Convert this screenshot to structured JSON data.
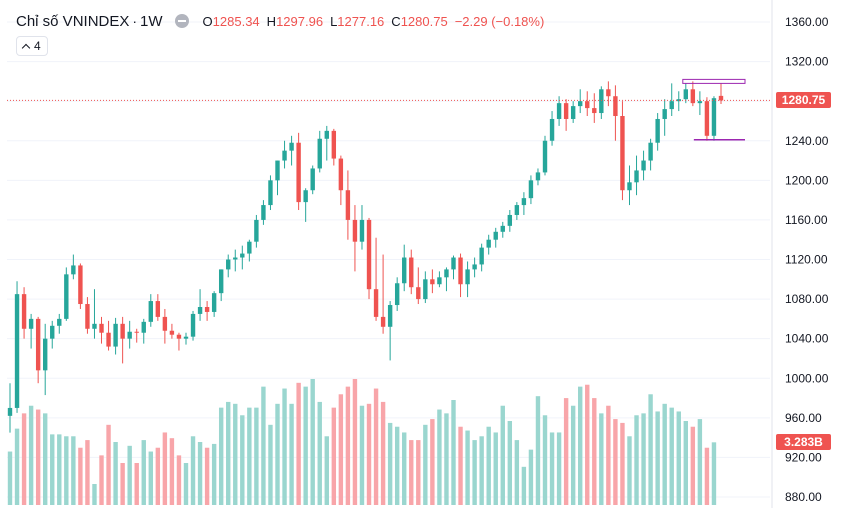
{
  "header": {
    "symbol": "Chỉ số VNINDEX",
    "separator": "·",
    "interval": "1W",
    "open_key": "O",
    "open": "1285.34",
    "high_key": "H",
    "high": "1297.96",
    "low_key": "L",
    "low": "1277.16",
    "close_key": "C",
    "close": "1280.75",
    "change": "−2.29 (−0.18%)",
    "indicators_count": "4"
  },
  "colors": {
    "up": "#26a69a",
    "down": "#ef5350",
    "vol_up": "#9ad6cf",
    "vol_down": "#f8a5a9",
    "price_line": "#ef5350",
    "drawing": "#9c27b0"
  },
  "last_price_label": "1280.75",
  "volume_label": "3.283B",
  "chart_data": {
    "type": "candlestick",
    "interval": "1W",
    "y_axis": {
      "ticks": [
        "1360.00",
        "1320.00",
        "1280.00",
        "1240.00",
        "1200.00",
        "1160.00",
        "1120.00",
        "1080.00",
        "1040.00",
        "1000.00",
        "960.00",
        "920.00",
        "880.00"
      ],
      "range": [
        875,
        1368
      ]
    },
    "last_price": 1280.75,
    "candles": [
      [
        962,
        995,
        945,
        970
      ],
      [
        970,
        1098,
        965,
        1085
      ],
      [
        1085,
        1092,
        1040,
        1050
      ],
      [
        1050,
        1065,
        1030,
        1060
      ],
      [
        1060,
        1062,
        995,
        1008
      ],
      [
        1008,
        1055,
        983,
        1040
      ],
      [
        1040,
        1058,
        1030,
        1053
      ],
      [
        1053,
        1065,
        1045,
        1060
      ],
      [
        1060,
        1112,
        1058,
        1105
      ],
      [
        1105,
        1125,
        1100,
        1114
      ],
      [
        1114,
        1116,
        1070,
        1075
      ],
      [
        1075,
        1082,
        1045,
        1050
      ],
      [
        1050,
        1090,
        1040,
        1055
      ],
      [
        1055,
        1062,
        1035,
        1046
      ],
      [
        1046,
        1058,
        1028,
        1032
      ],
      [
        1032,
        1061,
        1024,
        1055
      ],
      [
        1055,
        1062,
        1015,
        1040
      ],
      [
        1040,
        1058,
        1030,
        1047
      ],
      [
        1047,
        1050,
        1036,
        1046
      ],
      [
        1046,
        1060,
        1035,
        1057
      ],
      [
        1057,
        1085,
        1052,
        1078
      ],
      [
        1078,
        1085,
        1058,
        1062
      ],
      [
        1062,
        1070,
        1035,
        1048
      ],
      [
        1048,
        1055,
        1040,
        1044
      ],
      [
        1044,
        1046,
        1028,
        1040
      ],
      [
        1040,
        1046,
        1034,
        1042
      ],
      [
        1042,
        1068,
        1038,
        1065
      ],
      [
        1065,
        1090,
        1058,
        1072
      ],
      [
        1072,
        1078,
        1058,
        1067
      ],
      [
        1067,
        1088,
        1062,
        1086
      ],
      [
        1086,
        1110,
        1078,
        1110
      ],
      [
        1110,
        1125,
        1102,
        1120
      ],
      [
        1120,
        1130,
        1108,
        1122
      ],
      [
        1122,
        1134,
        1110,
        1126
      ],
      [
        1126,
        1140,
        1118,
        1138
      ],
      [
        1138,
        1165,
        1132,
        1160
      ],
      [
        1160,
        1180,
        1155,
        1175
      ],
      [
        1175,
        1205,
        1170,
        1200
      ],
      [
        1200,
        1220,
        1185,
        1220
      ],
      [
        1220,
        1240,
        1212,
        1230
      ],
      [
        1230,
        1245,
        1215,
        1238
      ],
      [
        1238,
        1248,
        1170,
        1178
      ],
      [
        1178,
        1192,
        1158,
        1190
      ],
      [
        1190,
        1215,
        1186,
        1212
      ],
      [
        1212,
        1250,
        1208,
        1242
      ],
      [
        1242,
        1255,
        1220,
        1250
      ],
      [
        1250,
        1252,
        1215,
        1222
      ],
      [
        1222,
        1225,
        1175,
        1190
      ],
      [
        1190,
        1210,
        1140,
        1160
      ],
      [
        1160,
        1175,
        1108,
        1138
      ],
      [
        1138,
        1175,
        1130,
        1160
      ],
      [
        1160,
        1162,
        1080,
        1090
      ],
      [
        1090,
        1142,
        1058,
        1062
      ],
      [
        1062,
        1125,
        1045,
        1052
      ],
      [
        1052,
        1078,
        1018,
        1074
      ],
      [
        1074,
        1102,
        1068,
        1096
      ],
      [
        1096,
        1135,
        1088,
        1122
      ],
      [
        1122,
        1130,
        1085,
        1092
      ],
      [
        1092,
        1112,
        1075,
        1080
      ],
      [
        1080,
        1108,
        1076,
        1100
      ],
      [
        1100,
        1110,
        1086,
        1095
      ],
      [
        1095,
        1108,
        1092,
        1102
      ],
      [
        1102,
        1112,
        1088,
        1110
      ],
      [
        1110,
        1124,
        1100,
        1122
      ],
      [
        1122,
        1126,
        1082,
        1095
      ],
      [
        1095,
        1118,
        1082,
        1110
      ],
      [
        1110,
        1122,
        1102,
        1115
      ],
      [
        1115,
        1136,
        1108,
        1132
      ],
      [
        1132,
        1145,
        1125,
        1140
      ],
      [
        1140,
        1152,
        1132,
        1148
      ],
      [
        1148,
        1158,
        1142,
        1154
      ],
      [
        1154,
        1170,
        1148,
        1165
      ],
      [
        1165,
        1178,
        1160,
        1175
      ],
      [
        1175,
        1188,
        1165,
        1182
      ],
      [
        1182,
        1205,
        1176,
        1200
      ],
      [
        1200,
        1212,
        1195,
        1208
      ],
      [
        1208,
        1245,
        1205,
        1240
      ],
      [
        1240,
        1270,
        1235,
        1262
      ],
      [
        1262,
        1285,
        1255,
        1278
      ],
      [
        1278,
        1282,
        1250,
        1262
      ],
      [
        1262,
        1280,
        1258,
        1275
      ],
      [
        1275,
        1292,
        1268,
        1280
      ],
      [
        1280,
        1290,
        1265,
        1273
      ],
      [
        1273,
        1288,
        1258,
        1268
      ],
      [
        1268,
        1295,
        1262,
        1292
      ],
      [
        1292,
        1300,
        1275,
        1285
      ],
      [
        1285,
        1296,
        1240,
        1265
      ],
      [
        1265,
        1280,
        1180,
        1190
      ],
      [
        1190,
        1215,
        1175,
        1198
      ],
      [
        1198,
        1225,
        1185,
        1210
      ],
      [
        1210,
        1230,
        1200,
        1220
      ],
      [
        1220,
        1242,
        1210,
        1238
      ],
      [
        1238,
        1268,
        1230,
        1262
      ],
      [
        1262,
        1282,
        1245,
        1272
      ],
      [
        1272,
        1298,
        1265,
        1280
      ],
      [
        1280,
        1290,
        1270,
        1282
      ],
      [
        1282,
        1298,
        1278,
        1292
      ],
      [
        1292,
        1300,
        1275,
        1278
      ],
      [
        1278,
        1290,
        1266,
        1280
      ],
      [
        1280,
        1284,
        1240,
        1245
      ],
      [
        1245,
        1285,
        1240,
        1283
      ],
      [
        1285.34,
        1297.96,
        1277.16,
        1280.75
      ]
    ],
    "volume": {
      "unit": "B",
      "values": [
        2.8,
        4.0,
        4.8,
        5.2,
        5.0,
        4.8,
        3.7,
        3.7,
        3.6,
        3.6,
        3.0,
        3.4,
        1.1,
        2.6,
        4.2,
        3.3,
        2.2,
        3.1,
        2.2,
        3.4,
        2.8,
        3.0,
        3.8,
        3.5,
        2.6,
        2.2,
        3.6,
        3.3,
        3.0,
        3.2,
        5.1,
        5.4,
        5.3,
        4.7,
        5.1,
        5.1,
        6.2,
        4.2,
        5.3,
        6.1,
        5.3,
        6.4,
        6.2,
        6.6,
        5.4,
        3.6,
        5.1,
        5.8,
        6.2,
        6.6,
        5.2,
        5.3,
        6.1,
        5.4,
        4.3,
        4.1,
        3.8,
        3.4,
        3.4,
        4.2,
        4.5,
        5.0,
        4.8,
        5.5,
        4.1,
        3.9,
        3.4,
        3.6,
        4.1,
        3.8,
        5.2,
        4.4,
        3.4,
        2.0,
        2.9,
        5.7,
        4.7,
        3.8,
        3.8,
        5.6,
        5.2,
        6.2,
        6.3,
        5.6,
        4.8,
        5.2,
        4.5,
        4.3,
        3.6,
        4.7,
        4.8,
        5.8,
        4.9,
        5.3,
        5.1,
        4.9,
        4.4,
        4.1,
        4.5,
        3.0,
        3.283
      ]
    }
  }
}
